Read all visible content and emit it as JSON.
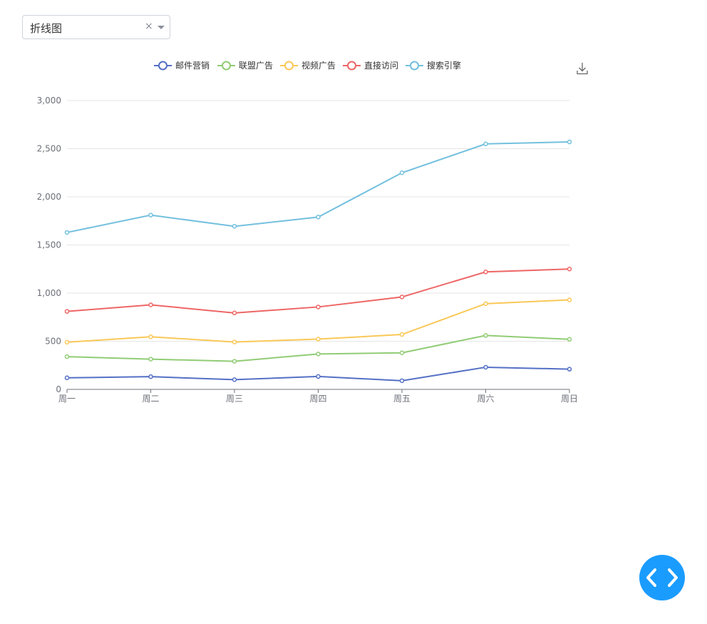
{
  "select": {
    "value": "折线图",
    "clear_label": "×",
    "caret_icon": "chevron-down-icon"
  },
  "toolbox": {
    "download_icon": "download-icon"
  },
  "fab": {
    "icon": "code-icon",
    "color": "#1a9cff"
  },
  "chart_data": {
    "type": "line",
    "categories": [
      "周一",
      "周二",
      "周三",
      "周四",
      "周五",
      "周六",
      "周日"
    ],
    "ylim": [
      0,
      3000
    ],
    "yticks": [
      0,
      500,
      1000,
      1500,
      2000,
      2500,
      3000
    ],
    "ytick_labels": [
      "0",
      "500",
      "1,000",
      "1,500",
      "2,000",
      "2,500",
      "3,000"
    ],
    "grid": true,
    "legend_position": "top-center",
    "series": [
      {
        "name": "邮件营销",
        "color": "#5470c6",
        "values": [
          120,
          132,
          101,
          134,
          90,
          230,
          210
        ]
      },
      {
        "name": "联盟广告",
        "color": "#91cc75",
        "values": [
          340,
          314,
          292,
          368,
          380,
          560,
          520
        ]
      },
      {
        "name": "视频广告",
        "color": "#fac858",
        "values": [
          490,
          546,
          492,
          522,
          570,
          890,
          930
        ]
      },
      {
        "name": "直接访问",
        "color": "#ee6666",
        "values": [
          810,
          878,
          794,
          856,
          960,
          1220,
          1250
        ]
      },
      {
        "name": "搜索引擎",
        "color": "#73c0de",
        "values": [
          1630,
          1810,
          1694,
          1790,
          2250,
          2550,
          2570
        ]
      }
    ]
  }
}
